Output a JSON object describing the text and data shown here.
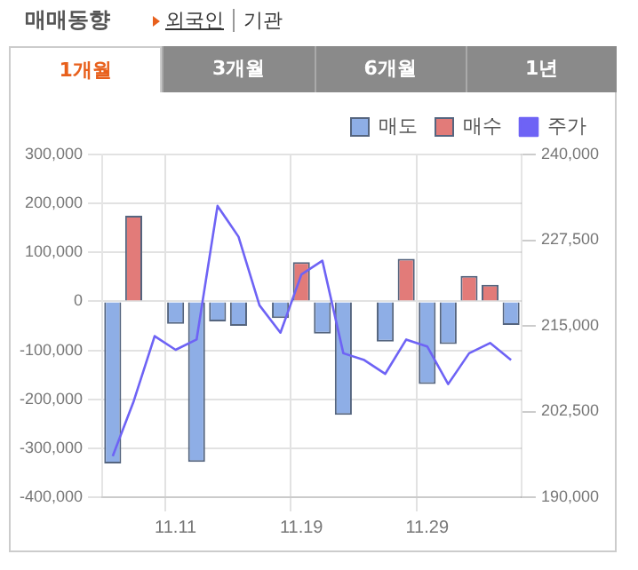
{
  "chart_data": {
    "type": "bar",
    "title": "매매동향",
    "annotations": [
      "외국인",
      "기관",
      "1개월",
      "3개월",
      "6개월",
      "1년"
    ],
    "categories": [
      null,
      null,
      null,
      "11.11",
      null,
      null,
      null,
      null,
      null,
      "11.19",
      null,
      null,
      null,
      null,
      null,
      "11.29",
      null,
      null,
      null,
      null
    ],
    "stacked": true,
    "series": [
      {
        "name": "매도",
        "color": "#8eaee6",
        "values": [
          -331000,
          0,
          0,
          -46000,
          -328000,
          -41000,
          -50000,
          0,
          -34000,
          0,
          -66000,
          -232000,
          0,
          -82000,
          0,
          -169000,
          -87000,
          0,
          0,
          -48000
        ]
      },
      {
        "name": "매수",
        "color": "#e27b79",
        "values": [
          0,
          175000,
          0,
          0,
          0,
          0,
          0,
          0,
          0,
          80000,
          0,
          0,
          0,
          0,
          87000,
          0,
          0,
          52000,
          34000,
          0
        ]
      },
      {
        "name": "주가",
        "type": "line",
        "axis": "y2",
        "color": "#6e63f5",
        "values": [
          196000,
          204000,
          213500,
          211500,
          213000,
          232500,
          228000,
          218000,
          214000,
          222500,
          224500,
          211000,
          210000,
          208000,
          213000,
          212000,
          206500,
          211000,
          212500,
          210000
        ]
      }
    ],
    "ylim": [
      -400000,
      300000
    ],
    "yticks": [
      {
        "value": -400000,
        "label": "-400,000"
      },
      {
        "value": -300000,
        "label": "-300,000"
      },
      {
        "value": -200000,
        "label": "-200,000"
      },
      {
        "value": -100000,
        "label": "-100,000"
      },
      0,
      {
        "value": 100000,
        "label": "100,000"
      },
      {
        "value": 200000,
        "label": "200,000"
      },
      {
        "value": 300000,
        "label": "300,000"
      }
    ],
    "y2lim": [
      190000,
      240000
    ],
    "y2ticks": [
      {
        "value": 190000,
        "label": "190,000"
      },
      {
        "value": 202500,
        "label": "202,500"
      },
      {
        "value": 215000,
        "label": "215,000"
      },
      {
        "value": 227500,
        "label": "227,500"
      },
      {
        "value": 240000,
        "label": "240,000"
      }
    ],
    "grid": true,
    "legend": "top right",
    "marker": "none",
    "line_style": "solid"
  }
}
